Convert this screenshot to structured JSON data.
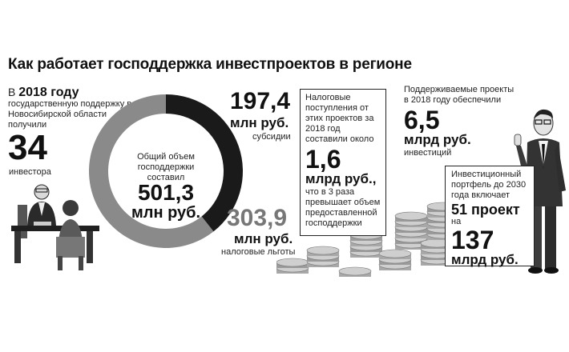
{
  "title": "Как работает господдержка инвестпроектов в регионе",
  "left_block": {
    "prefix": "В ",
    "year": "2018 году",
    "text": "государственную поддержку в Новосибирской области получили",
    "number": "34",
    "unit": "инвестора"
  },
  "chart_data": {
    "type": "pie",
    "title": "Общий объем господдержки составил",
    "total_value": "501,3",
    "total_unit": "млн руб.",
    "slices": [
      {
        "value_label": "197,4",
        "unit": "млн руб.",
        "name": "субсидии",
        "value": 197.4,
        "color": "#1a1a1a"
      },
      {
        "value_label": "303,9",
        "unit": "млн руб.",
        "name": "налоговые льготы",
        "value": 303.9,
        "color": "#8a8a8a"
      }
    ]
  },
  "tax_box": {
    "text_top": "Налоговые поступления от этих проектов за 2018 год составили около",
    "number": "1,6",
    "unit": "млрд руб.,",
    "text_bottom": "что в 3 раза превышает объем предоставленной господдержки"
  },
  "supported": {
    "text": "Поддерживаемые проекты в 2018 году обеспечили",
    "number": "6,5",
    "unit": "млрд руб.",
    "caption": "инвестиций"
  },
  "portfolio_box": {
    "text": "Инвестиционный портфель до 2030 года включает",
    "projects": "51 проект",
    "on": "на",
    "number": "137",
    "unit": "млрд руб."
  },
  "colors": {
    "dark": "#1a1a1a",
    "gray": "#8a8a8a",
    "coin": "#b8b8b8"
  }
}
